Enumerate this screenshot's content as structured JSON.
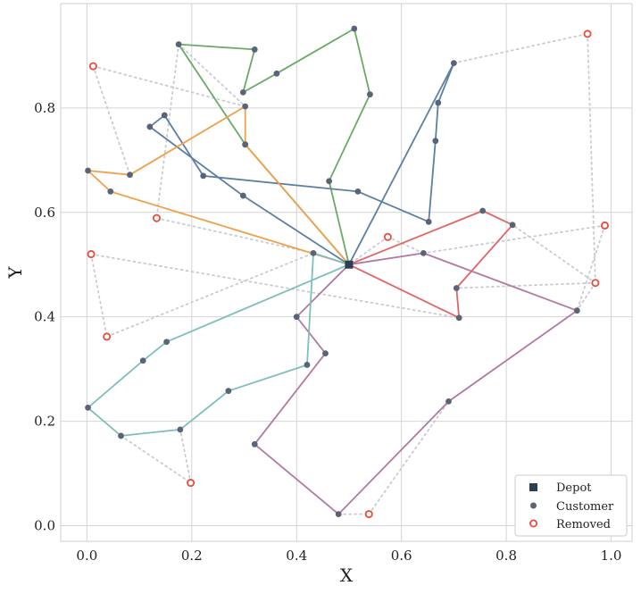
{
  "chart_data": {
    "type": "scatter",
    "title": "",
    "xlabel": "X",
    "ylabel": "Y",
    "xlim": [
      -0.05,
      1.04
    ],
    "ylim": [
      -0.03,
      1.0
    ],
    "grid": true,
    "xticks": [
      0.0,
      0.2,
      0.4,
      0.6,
      0.8,
      1.0
    ],
    "xtick_labels": [
      "0.0",
      "0.2",
      "0.4",
      "0.6",
      "0.8",
      "1.0"
    ],
    "yticks": [
      0.0,
      0.2,
      0.4,
      0.6,
      0.8
    ],
    "ytick_labels": [
      "0.0",
      "0.2",
      "0.4",
      "0.6",
      "0.8"
    ],
    "legend": {
      "placement": "bottom-right",
      "entries": [
        {
          "label": "Depot",
          "marker": "square",
          "color": "#2c3e50"
        },
        {
          "label": "Customer",
          "marker": "dot",
          "color": "#5a6478"
        },
        {
          "label": "Removed",
          "marker": "ring",
          "color": "#e74c3c"
        }
      ]
    },
    "depot": {
      "x": 0.5,
      "y": 0.5,
      "color": "#2c3e50"
    },
    "routes": [
      {
        "name": "green",
        "color": "#6aaa64",
        "points": [
          [
            0.5,
            0.5
          ],
          [
            0.302,
            0.73
          ],
          [
            0.175,
            0.922
          ],
          [
            0.32,
            0.912
          ],
          [
            0.298,
            0.83
          ],
          [
            0.362,
            0.866
          ],
          [
            0.51,
            0.952
          ],
          [
            0.54,
            0.826
          ],
          [
            0.462,
            0.66
          ],
          [
            0.5,
            0.5
          ]
        ]
      },
      {
        "name": "blue",
        "color": "#5d7fa3",
        "points": [
          [
            0.5,
            0.5
          ],
          [
            0.7,
            0.886
          ],
          [
            0.67,
            0.81
          ],
          [
            0.665,
            0.737
          ],
          [
            0.652,
            0.582
          ],
          [
            0.517,
            0.64
          ],
          [
            0.222,
            0.67
          ],
          [
            0.148,
            0.786
          ],
          [
            0.12,
            0.764
          ],
          [
            0.298,
            0.632
          ],
          [
            0.5,
            0.5
          ]
        ]
      },
      {
        "name": "orange",
        "color": "#f0a04b",
        "points": [
          [
            0.5,
            0.5
          ],
          [
            0.045,
            0.64
          ],
          [
            0.002,
            0.68
          ],
          [
            0.082,
            0.672
          ],
          [
            0.302,
            0.803
          ],
          [
            0.302,
            0.73
          ],
          [
            0.5,
            0.5
          ]
        ]
      },
      {
        "name": "red",
        "color": "#e06666",
        "points": [
          [
            0.5,
            0.5
          ],
          [
            0.755,
            0.603
          ],
          [
            0.812,
            0.576
          ],
          [
            0.705,
            0.455
          ],
          [
            0.71,
            0.398
          ],
          [
            0.5,
            0.5
          ]
        ]
      },
      {
        "name": "purple",
        "color": "#b07aa1",
        "points": [
          [
            0.5,
            0.5
          ],
          [
            0.642,
            0.522
          ],
          [
            0.935,
            0.412
          ],
          [
            0.69,
            0.238
          ],
          [
            0.48,
            0.022
          ],
          [
            0.32,
            0.156
          ],
          [
            0.455,
            0.33
          ],
          [
            0.4,
            0.4
          ],
          [
            0.5,
            0.5
          ]
        ]
      },
      {
        "name": "teal",
        "color": "#7fbfbb",
        "points": [
          [
            0.5,
            0.5
          ],
          [
            0.432,
            0.522
          ],
          [
            0.42,
            0.308
          ],
          [
            0.27,
            0.258
          ],
          [
            0.178,
            0.184
          ],
          [
            0.065,
            0.172
          ],
          [
            0.002,
            0.226
          ],
          [
            0.107,
            0.316
          ],
          [
            0.152,
            0.352
          ],
          [
            0.5,
            0.5
          ]
        ]
      }
    ],
    "removed_links_color": "#c8ccd2",
    "removed_links": [
      [
        [
          0.175,
          0.922
        ],
        [
          0.302,
          0.803
        ]
      ],
      [
        [
          0.175,
          0.922
        ],
        [
          0.133,
          0.589
        ]
      ],
      [
        [
          0.133,
          0.589
        ],
        [
          0.432,
          0.522
        ]
      ],
      [
        [
          0.012,
          0.88
        ],
        [
          0.302,
          0.803
        ]
      ],
      [
        [
          0.012,
          0.88
        ],
        [
          0.082,
          0.672
        ]
      ],
      [
        [
          0.7,
          0.886
        ],
        [
          0.955,
          0.942
        ]
      ],
      [
        [
          0.955,
          0.942
        ],
        [
          0.97,
          0.465
        ]
      ],
      [
        [
          0.97,
          0.465
        ],
        [
          0.705,
          0.455
        ]
      ],
      [
        [
          0.97,
          0.465
        ],
        [
          0.812,
          0.576
        ]
      ],
      [
        [
          0.97,
          0.465
        ],
        [
          0.935,
          0.412
        ]
      ],
      [
        [
          0.988,
          0.575
        ],
        [
          0.935,
          0.412
        ]
      ],
      [
        [
          0.988,
          0.575
        ],
        [
          0.642,
          0.522
        ]
      ],
      [
        [
          0.642,
          0.522
        ],
        [
          0.574,
          0.553
        ]
      ],
      [
        [
          0.574,
          0.553
        ],
        [
          0.5,
          0.5
        ]
      ],
      [
        [
          0.008,
          0.52
        ],
        [
          0.71,
          0.398
        ]
      ],
      [
        [
          0.008,
          0.52
        ],
        [
          0.038,
          0.362
        ]
      ],
      [
        [
          0.038,
          0.362
        ],
        [
          0.432,
          0.522
        ]
      ],
      [
        [
          0.065,
          0.172
        ],
        [
          0.198,
          0.082
        ]
      ],
      [
        [
          0.198,
          0.082
        ],
        [
          0.178,
          0.184
        ]
      ],
      [
        [
          0.48,
          0.022
        ],
        [
          0.538,
          0.022
        ]
      ],
      [
        [
          0.538,
          0.022
        ],
        [
          0.69,
          0.238
        ]
      ]
    ],
    "removed_points": [
      [
        0.012,
        0.88
      ],
      [
        0.955,
        0.942
      ],
      [
        0.133,
        0.589
      ],
      [
        0.574,
        0.553
      ],
      [
        0.988,
        0.575
      ],
      [
        0.97,
        0.465
      ],
      [
        0.008,
        0.52
      ],
      [
        0.038,
        0.362
      ],
      [
        0.198,
        0.082
      ],
      [
        0.538,
        0.022
      ]
    ],
    "customer_color": "#5a6478",
    "removed_color": "#e74c3c"
  }
}
